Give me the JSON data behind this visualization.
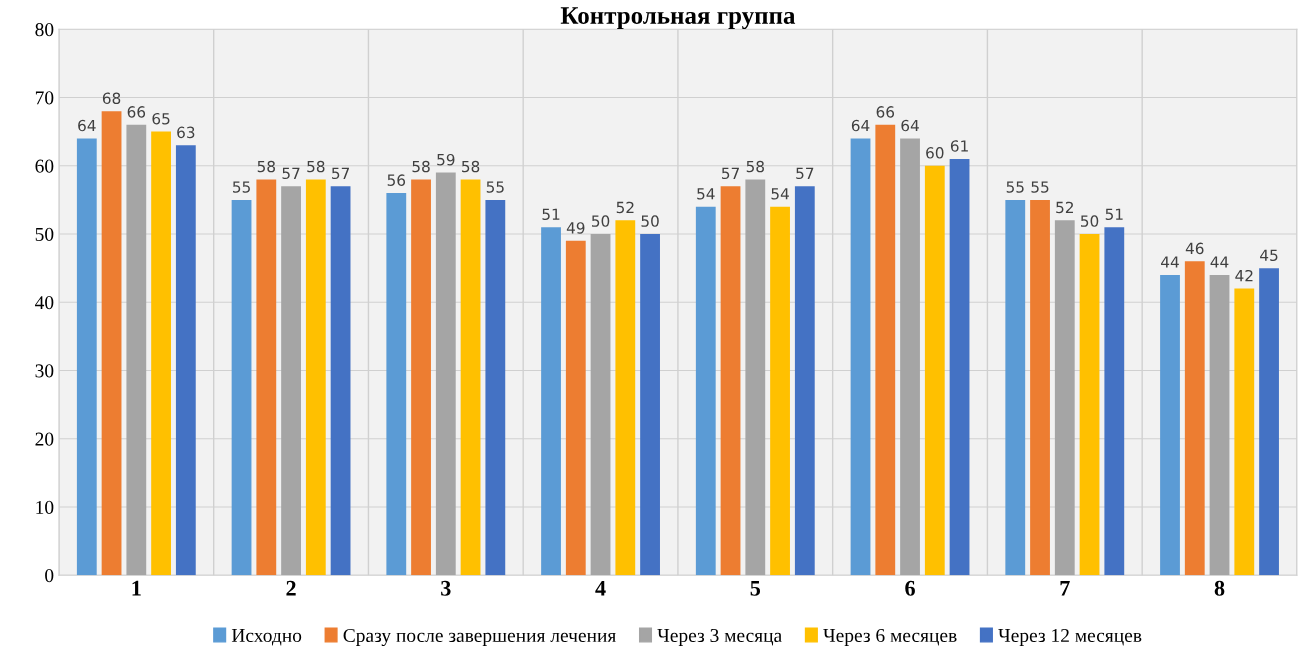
{
  "chart_data": {
    "type": "bar",
    "title": "Контрольная группа",
    "categories": [
      "1",
      "2",
      "3",
      "4",
      "5",
      "6",
      "7",
      "8"
    ],
    "series": [
      {
        "name": "Исходно",
        "color": "#5b9bd5",
        "values": [
          64,
          55,
          56,
          51,
          54,
          64,
          55,
          44
        ]
      },
      {
        "name": "Сразу после завершения лечения",
        "color": "#ed7d31",
        "values": [
          68,
          58,
          58,
          49,
          57,
          66,
          55,
          46
        ]
      },
      {
        "name": "Через 3 месяца",
        "color": "#a5a5a5",
        "values": [
          66,
          57,
          59,
          50,
          58,
          64,
          52,
          44
        ]
      },
      {
        "name": "Через 6 месяцев",
        "color": "#ffc000",
        "values": [
          65,
          58,
          58,
          52,
          54,
          60,
          50,
          42
        ]
      },
      {
        "name": "Через 12 месяцев",
        "color": "#4472c4",
        "values": [
          63,
          57,
          55,
          50,
          57,
          61,
          51,
          45
        ]
      }
    ],
    "ylim": [
      0,
      80
    ],
    "yticks": [
      0,
      10,
      20,
      30,
      40,
      50,
      60,
      70,
      80
    ],
    "grid": true,
    "legend": "bottom",
    "data_labels": true
  }
}
